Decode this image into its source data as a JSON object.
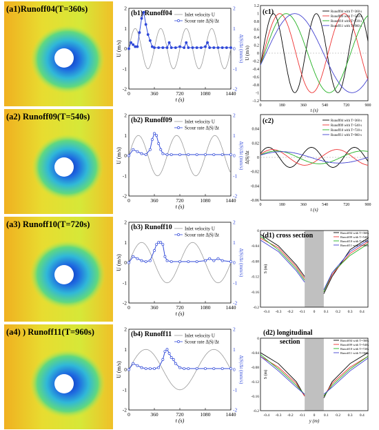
{
  "colors": {
    "inlet": "#999999",
    "scour": "#2f48d8",
    "run04": "#000000",
    "run09": "#ee3030",
    "run10": "#20b020",
    "run11": "#4040d0",
    "obstacle": "#c0c0c0"
  },
  "scour_panels": [
    {
      "title": "(a1)Runoff04(T=360s)"
    },
    {
      "title": "(a2) Runoff09(T=540s)"
    },
    {
      "title": "(a3) Runoff10(T=720s)"
    },
    {
      "title": "(a4) ) Runoff11(T=960s)"
    }
  ],
  "b_axes": {
    "xlabel": "t (s)",
    "ylabel_left": "U (m/s)",
    "ylabel_right": "Δ|S|/Δt (mm/s)",
    "xticks": [
      0,
      360,
      720,
      1080,
      1440
    ],
    "yticks": [
      -2,
      -1,
      0,
      1,
      2
    ],
    "legend": {
      "inlet": "Inlet velocity U",
      "scour": "Scour rate Δ|S|/Δt"
    }
  },
  "c_axes": {
    "xlabel": "t (s)",
    "ylabel": "U (m/s)",
    "ylabel_c2": "Δ|S|/Δt",
    "xticks": [
      0,
      180,
      360,
      540,
      720,
      900
    ],
    "legend": [
      "Runoff04 with T=360 s",
      "Runoff09 with T=540 s",
      "Runoff10 with T=720 s",
      "Runoff11 with T=960 s"
    ]
  },
  "d_axes": {
    "ylabel": "S (m)",
    "xticks": [
      -0.4,
      -0.3,
      -0.2,
      -0.1,
      0,
      0.1,
      0.2,
      0.3,
      0.4
    ],
    "yticks": [
      0,
      -0.04,
      -0.08,
      -0.12,
      -0.16,
      -0.2
    ],
    "legend": [
      "Runoff04 with T=360s",
      "Runoff09 with T=540s",
      "Runoff10 with T=720s",
      "Runoff11 with T=960s"
    ]
  },
  "chart_data": [
    {
      "id": "b1",
      "type": "line",
      "title": "(b1) Runoff04",
      "xlabel": "t (s)",
      "ylabel": "U (m/s)",
      "ylabel_right": "Δ|S|/Δt (mm/s)",
      "xlim": [
        0,
        1440
      ],
      "ylim": [
        -2,
        2
      ],
      "series": [
        {
          "name": "Inlet velocity U",
          "amplitude": 1,
          "period": 360
        },
        {
          "name": "Scour rate Δ|S|/Δt",
          "x": [
            0,
            30,
            60,
            90,
            120,
            150,
            180,
            210,
            240,
            270,
            300,
            330,
            360,
            420,
            480,
            540,
            570,
            600,
            660,
            720,
            780,
            810,
            840,
            900,
            960,
            1020,
            1080,
            1110,
            1140,
            1200,
            1260,
            1320,
            1380,
            1440
          ],
          "y": [
            0,
            0.3,
            0.2,
            0.1,
            0.1,
            0.8,
            1.5,
            1.8,
            1.2,
            0.7,
            0.4,
            0.1,
            0.05,
            0.05,
            0.05,
            0.05,
            0.3,
            0.05,
            0.05,
            0.1,
            0.05,
            0.3,
            0.05,
            0.05,
            0.05,
            0.05,
            0.1,
            0.3,
            0.05,
            0.05,
            0.05,
            0.05,
            0.05,
            0.05
          ]
        }
      ]
    },
    {
      "id": "b2",
      "type": "line",
      "title": "(b2) Runoff09",
      "xlabel": "t (s)",
      "ylabel": "U (m/s)",
      "ylabel_right": "Δ|S|/Δt (mm/s)",
      "xlim": [
        0,
        1440
      ],
      "ylim": [
        -2,
        2
      ],
      "series": [
        {
          "name": "Inlet velocity U",
          "amplitude": 1,
          "period": 540
        },
        {
          "name": "Scour rate Δ|S|/Δt",
          "x": [
            0,
            60,
            120,
            180,
            240,
            300,
            330,
            360,
            390,
            420,
            450,
            480,
            540,
            600,
            720,
            840,
            960,
            1080,
            1200,
            1320,
            1440
          ],
          "y": [
            0,
            0.3,
            0.2,
            0.1,
            0.05,
            0.3,
            0.8,
            1.1,
            1.0,
            0.6,
            0.3,
            0.1,
            0.05,
            0.05,
            0.05,
            0.05,
            0.05,
            0.05,
            0.05,
            0.05,
            0.05
          ]
        }
      ]
    },
    {
      "id": "b3",
      "type": "line",
      "title": "(b3) Runoff10",
      "xlabel": "t (s)",
      "ylabel": "U (m/s)",
      "ylabel_right": "Δ|S|/Δt (mm/s)",
      "xlim": [
        0,
        1440
      ],
      "ylim": [
        -2,
        2
      ],
      "series": [
        {
          "name": "Inlet velocity U",
          "amplitude": 1,
          "period": 720
        },
        {
          "name": "Scour rate Δ|S|/Δt",
          "x": [
            0,
            60,
            120,
            180,
            240,
            300,
            360,
            390,
            420,
            450,
            480,
            510,
            540,
            600,
            720,
            840,
            960,
            1080,
            1140,
            1200,
            1260,
            1320,
            1440
          ],
          "y": [
            0,
            0.3,
            0.2,
            0.1,
            0.05,
            0.1,
            0.6,
            0.9,
            1.0,
            1.0,
            0.9,
            0.3,
            0.1,
            0.05,
            0.05,
            0.05,
            0.05,
            0.1,
            0.2,
            0.1,
            0.2,
            0.1,
            0.05
          ]
        }
      ]
    },
    {
      "id": "b4",
      "type": "line",
      "title": "(b4) Runoff11",
      "xlabel": "t (s)",
      "ylabel": "U (m/s)",
      "ylabel_right": "Δ|S|/Δt (mm/s)",
      "xlim": [
        0,
        1440
      ],
      "ylim": [
        -2,
        2
      ],
      "series": [
        {
          "name": "Inlet velocity U",
          "amplitude": 1,
          "period": 960
        },
        {
          "name": "Scour rate Δ|S|/Δt",
          "x": [
            0,
            60,
            120,
            180,
            240,
            300,
            360,
            420,
            480,
            510,
            540,
            570,
            600,
            630,
            660,
            720,
            780,
            840,
            960,
            1080,
            1200,
            1320,
            1440
          ],
          "y": [
            0,
            0.3,
            0.2,
            0.1,
            0.05,
            0.05,
            0.05,
            0.1,
            0.5,
            0.9,
            1.0,
            0.8,
            0.6,
            0.5,
            0.3,
            0.1,
            0.05,
            0.05,
            0.05,
            0.05,
            0.05,
            0.05,
            0.05
          ]
        }
      ]
    },
    {
      "id": "c1",
      "type": "line",
      "title": "(c1)",
      "xlabel": "t (s)",
      "ylabel": "U (m/s)",
      "xlim": [
        0,
        900
      ],
      "ylim": [
        -1.2,
        1.2
      ],
      "series": [
        {
          "name": "Runoff04 with T=360 s",
          "period": 360
        },
        {
          "name": "Runoff09 with T=540 s",
          "period": 540
        },
        {
          "name": "Runoff10 with T=720 s",
          "period": 720
        },
        {
          "name": "Runoff11 with T=960 s",
          "period": 960
        }
      ]
    },
    {
      "id": "c2",
      "type": "line",
      "title": "(c2)",
      "xlabel": "t (s)",
      "ylabel": "Δ|S|/Δt",
      "xlim": [
        0,
        900
      ],
      "ylim": [
        -0.06,
        0.06
      ],
      "series": [
        {
          "name": "Runoff04 with T=360 s",
          "period": 360,
          "amplitude": 0.014
        },
        {
          "name": "Runoff09 with T=540 s",
          "period": 540,
          "amplitude": 0.011
        },
        {
          "name": "Runoff10 with T=720 s",
          "period": 720,
          "amplitude": 0.009
        },
        {
          "name": "Runoff11 with T=960 s",
          "period": 960,
          "amplitude": 0.008
        }
      ]
    },
    {
      "id": "d1",
      "type": "line",
      "title": "(d1) cross section",
      "xlabel": "",
      "ylabel": "S (m)",
      "xlim": [
        -0.45,
        0.45
      ],
      "ylim": [
        -0.2,
        0
      ],
      "series": [
        {
          "name": "Runoff04 with T=360s",
          "x": [
            -0.45,
            -0.3,
            -0.15,
            -0.08,
            0.08,
            0.15,
            0.3,
            0.45
          ],
          "y": [
            -0.01,
            -0.04,
            -0.09,
            -0.12,
            -0.165,
            -0.12,
            -0.05,
            -0.02
          ]
        },
        {
          "name": "Runoff09 with T=540s",
          "x": [
            -0.45,
            -0.3,
            -0.15,
            -0.08,
            0.08,
            0.15,
            0.3,
            0.45
          ],
          "y": [
            -0.02,
            -0.045,
            -0.095,
            -0.125,
            -0.16,
            -0.115,
            -0.06,
            -0.03
          ]
        },
        {
          "name": "Runoff10 with T=720s",
          "x": [
            -0.45,
            -0.3,
            -0.15,
            -0.08,
            0.08,
            0.15,
            0.3,
            0.45
          ],
          "y": [
            -0.015,
            -0.05,
            -0.1,
            -0.13,
            -0.16,
            -0.11,
            -0.065,
            -0.035
          ]
        },
        {
          "name": "Runoff11 with T=960s",
          "x": [
            -0.45,
            -0.3,
            -0.15,
            -0.08,
            0.08,
            0.15,
            0.3,
            0.45
          ],
          "y": [
            -0.025,
            -0.055,
            -0.105,
            -0.135,
            -0.155,
            -0.11,
            -0.055,
            -0.025
          ]
        }
      ]
    },
    {
      "id": "d2",
      "type": "line",
      "title": "(d2) longitudinal section",
      "xlabel": "y (m)",
      "ylabel": "S (m)",
      "xlim": [
        -0.45,
        0.45
      ],
      "ylim": [
        -0.2,
        0
      ],
      "series": [
        {
          "name": "Runoff04 with T=360s",
          "x": [
            -0.45,
            -0.3,
            -0.15,
            -0.08,
            0.08,
            0.15,
            0.3,
            0.45
          ],
          "y": [
            -0.04,
            -0.07,
            -0.12,
            -0.16,
            -0.165,
            -0.12,
            -0.07,
            -0.04
          ]
        },
        {
          "name": "Runoff09 with T=540s",
          "x": [
            -0.45,
            -0.3,
            -0.15,
            -0.08,
            0.08,
            0.15,
            0.3,
            0.45
          ],
          "y": [
            -0.05,
            -0.08,
            -0.125,
            -0.16,
            -0.16,
            -0.125,
            -0.08,
            -0.05
          ]
        },
        {
          "name": "Runoff10 with T=720s",
          "x": [
            -0.45,
            -0.3,
            -0.15,
            -0.08,
            0.08,
            0.15,
            0.3,
            0.45
          ],
          "y": [
            -0.045,
            -0.085,
            -0.13,
            -0.155,
            -0.16,
            -0.13,
            -0.085,
            -0.05
          ]
        },
        {
          "name": "Runoff11 with T=960s",
          "x": [
            -0.45,
            -0.3,
            -0.15,
            -0.08,
            0.08,
            0.15,
            0.3,
            0.45
          ],
          "y": [
            -0.05,
            -0.09,
            -0.135,
            -0.155,
            -0.155,
            -0.135,
            -0.09,
            -0.055
          ]
        }
      ]
    }
  ]
}
